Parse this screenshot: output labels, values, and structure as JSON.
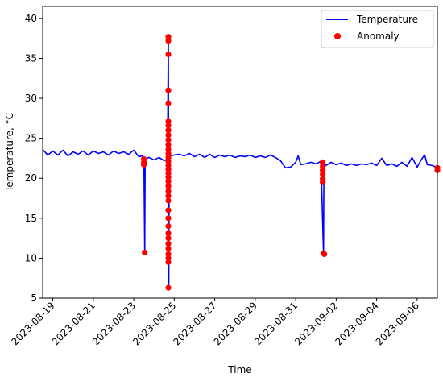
{
  "chart_data": {
    "type": "line",
    "xlabel": "Time",
    "ylabel": "Temperature, °C",
    "xlim": [
      "2023-08-18T12:00",
      "2023-09-07T00:00"
    ],
    "ylim": [
      5,
      41.5
    ],
    "yticks": [
      5,
      10,
      15,
      20,
      25,
      30,
      35,
      40
    ],
    "xticks": [
      "2023-08-19",
      "2023-08-21",
      "2023-08-23",
      "2023-08-25",
      "2023-08-27",
      "2023-08-29",
      "2023-08-31",
      "2023-09-02",
      "2023-09-04",
      "2023-09-06"
    ],
    "grid": false,
    "legend_position": "top-right",
    "colors": {
      "temperature": "#0000ff",
      "anomaly": "#ff0000"
    },
    "series": [
      {
        "name": "Temperature",
        "kind": "line",
        "points": [
          [
            "2023-08-18T12:00",
            23.6
          ],
          [
            "2023-08-18T18:00",
            22.9
          ],
          [
            "2023-08-19T00:00",
            23.4
          ],
          [
            "2023-08-19T06:00",
            22.9
          ],
          [
            "2023-08-19T12:00",
            23.5
          ],
          [
            "2023-08-19T18:00",
            22.8
          ],
          [
            "2023-08-20T00:00",
            23.3
          ],
          [
            "2023-08-20T06:00",
            23.0
          ],
          [
            "2023-08-20T12:00",
            23.4
          ],
          [
            "2023-08-20T18:00",
            22.9
          ],
          [
            "2023-08-21T00:00",
            23.4
          ],
          [
            "2023-08-21T06:00",
            23.1
          ],
          [
            "2023-08-21T12:00",
            23.3
          ],
          [
            "2023-08-21T18:00",
            22.9
          ],
          [
            "2023-08-22T00:00",
            23.4
          ],
          [
            "2023-08-22T06:00",
            23.1
          ],
          [
            "2023-08-22T12:00",
            23.3
          ],
          [
            "2023-08-22T18:00",
            23.0
          ],
          [
            "2023-08-23T00:00",
            23.5
          ],
          [
            "2023-08-23T06:00",
            22.7
          ],
          [
            "2023-08-23T10:00",
            22.8
          ],
          [
            "2023-08-23T12:00",
            22.6
          ],
          [
            "2023-08-23T13:00",
            10.7
          ],
          [
            "2023-08-23T13:30",
            22.4
          ],
          [
            "2023-08-23T18:00",
            22.6
          ],
          [
            "2023-08-24T00:00",
            22.3
          ],
          [
            "2023-08-24T06:00",
            22.6
          ],
          [
            "2023-08-24T12:00",
            22.2
          ],
          [
            "2023-08-24T16:00",
            22.4
          ],
          [
            "2023-08-24T17:00",
            37.6
          ],
          [
            "2023-08-24T17:30",
            6.3
          ],
          [
            "2023-08-24T18:00",
            22.8
          ],
          [
            "2023-08-25T00:00",
            22.9
          ],
          [
            "2023-08-25T06:00",
            23.0
          ],
          [
            "2023-08-25T12:00",
            22.8
          ],
          [
            "2023-08-25T18:00",
            23.1
          ],
          [
            "2023-08-26T00:00",
            22.7
          ],
          [
            "2023-08-26T06:00",
            23.0
          ],
          [
            "2023-08-26T12:00",
            22.6
          ],
          [
            "2023-08-26T18:00",
            23.0
          ],
          [
            "2023-08-27T00:00",
            22.6
          ],
          [
            "2023-08-27T06:00",
            22.9
          ],
          [
            "2023-08-27T12:00",
            22.7
          ],
          [
            "2023-08-27T18:00",
            22.9
          ],
          [
            "2023-08-28T00:00",
            22.6
          ],
          [
            "2023-08-28T06:00",
            22.8
          ],
          [
            "2023-08-28T12:00",
            22.7
          ],
          [
            "2023-08-28T18:00",
            22.9
          ],
          [
            "2023-08-29T00:00",
            22.6
          ],
          [
            "2023-08-29T06:00",
            22.8
          ],
          [
            "2023-08-29T12:00",
            22.6
          ],
          [
            "2023-08-29T18:00",
            22.9
          ],
          [
            "2023-08-30T00:00",
            22.6
          ],
          [
            "2023-08-30T06:00",
            22.2
          ],
          [
            "2023-08-30T12:00",
            21.3
          ],
          [
            "2023-08-30T18:00",
            21.4
          ],
          [
            "2023-08-31T00:00",
            22.0
          ],
          [
            "2023-08-31T03:00",
            22.8
          ],
          [
            "2023-08-31T06:00",
            21.7
          ],
          [
            "2023-08-31T12:00",
            21.8
          ],
          [
            "2023-08-31T18:00",
            22.0
          ],
          [
            "2023-09-01T00:00",
            21.8
          ],
          [
            "2023-09-01T06:00",
            22.1
          ],
          [
            "2023-09-01T09:00",
            10.6
          ],
          [
            "2023-09-01T09:30",
            21.9
          ],
          [
            "2023-09-01T12:00",
            21.6
          ],
          [
            "2023-09-01T18:00",
            22.0
          ],
          [
            "2023-09-02T00:00",
            21.7
          ],
          [
            "2023-09-02T06:00",
            21.9
          ],
          [
            "2023-09-02T12:00",
            21.6
          ],
          [
            "2023-09-02T18:00",
            21.8
          ],
          [
            "2023-09-03T00:00",
            21.6
          ],
          [
            "2023-09-03T06:00",
            21.8
          ],
          [
            "2023-09-03T12:00",
            21.7
          ],
          [
            "2023-09-03T18:00",
            21.9
          ],
          [
            "2023-09-04T00:00",
            21.6
          ],
          [
            "2023-09-04T06:00",
            22.5
          ],
          [
            "2023-09-04T12:00",
            21.6
          ],
          [
            "2023-09-04T18:00",
            21.8
          ],
          [
            "2023-09-05T00:00",
            21.5
          ],
          [
            "2023-09-05T06:00",
            22.0
          ],
          [
            "2023-09-05T12:00",
            21.5
          ],
          [
            "2023-09-05T18:00",
            22.6
          ],
          [
            "2023-09-06T00:00",
            21.4
          ],
          [
            "2023-09-06T06:00",
            22.5
          ],
          [
            "2023-09-06T09:00",
            22.9
          ],
          [
            "2023-09-06T12:00",
            21.7
          ],
          [
            "2023-09-06T18:00",
            21.6
          ],
          [
            "2023-09-07T00:00",
            21.3
          ]
        ]
      },
      {
        "name": "Anomaly",
        "kind": "scatter",
        "points": [
          [
            "2023-08-23T12:00",
            21.7
          ],
          [
            "2023-08-23T12:00",
            22.0
          ],
          [
            "2023-08-23T12:00",
            22.4
          ],
          [
            "2023-08-23T13:00",
            10.7
          ],
          [
            "2023-08-24T17:00",
            37.7
          ],
          [
            "2023-08-24T17:00",
            37.2
          ],
          [
            "2023-08-24T17:00",
            35.5
          ],
          [
            "2023-08-24T17:00",
            31.0
          ],
          [
            "2023-08-24T17:00",
            29.4
          ],
          [
            "2023-08-24T17:00",
            27.1
          ],
          [
            "2023-08-24T17:00",
            26.6
          ],
          [
            "2023-08-24T17:00",
            26.0
          ],
          [
            "2023-08-24T17:00",
            25.4
          ],
          [
            "2023-08-24T17:00",
            24.8
          ],
          [
            "2023-08-24T17:00",
            24.2
          ],
          [
            "2023-08-24T17:00",
            23.6
          ],
          [
            "2023-08-24T17:00",
            23.1
          ],
          [
            "2023-08-24T17:00",
            22.6
          ],
          [
            "2023-08-24T17:00",
            22.1
          ],
          [
            "2023-08-24T17:00",
            21.6
          ],
          [
            "2023-08-24T17:00",
            21.1
          ],
          [
            "2023-08-24T17:00",
            20.6
          ],
          [
            "2023-08-24T17:00",
            20.1
          ],
          [
            "2023-08-24T17:00",
            19.6
          ],
          [
            "2023-08-24T17:00",
            19.0
          ],
          [
            "2023-08-24T17:00",
            18.4
          ],
          [
            "2023-08-24T17:00",
            17.8
          ],
          [
            "2023-08-24T17:00",
            17.2
          ],
          [
            "2023-08-24T17:00",
            16.0
          ],
          [
            "2023-08-24T17:00",
            15.0
          ],
          [
            "2023-08-24T17:00",
            14.0
          ],
          [
            "2023-08-24T17:00",
            13.1
          ],
          [
            "2023-08-24T17:00",
            12.5
          ],
          [
            "2023-08-24T17:00",
            11.8
          ],
          [
            "2023-08-24T17:00",
            11.2
          ],
          [
            "2023-08-24T17:00",
            10.5
          ],
          [
            "2023-08-24T17:00",
            10.0
          ],
          [
            "2023-08-24T17:00",
            9.5
          ],
          [
            "2023-08-24T17:00",
            6.3
          ],
          [
            "2023-09-01T08:00",
            22.0
          ],
          [
            "2023-09-01T08:00",
            21.5
          ],
          [
            "2023-09-01T08:00",
            21.0
          ],
          [
            "2023-09-01T08:00",
            20.5
          ],
          [
            "2023-09-01T08:00",
            19.9
          ],
          [
            "2023-09-01T08:00",
            19.5
          ],
          [
            "2023-09-01T09:00",
            10.6
          ],
          [
            "2023-09-01T10:00",
            10.5
          ],
          [
            "2023-09-07T00:00",
            21.3
          ],
          [
            "2023-09-07T00:00",
            21.0
          ]
        ]
      }
    ]
  }
}
